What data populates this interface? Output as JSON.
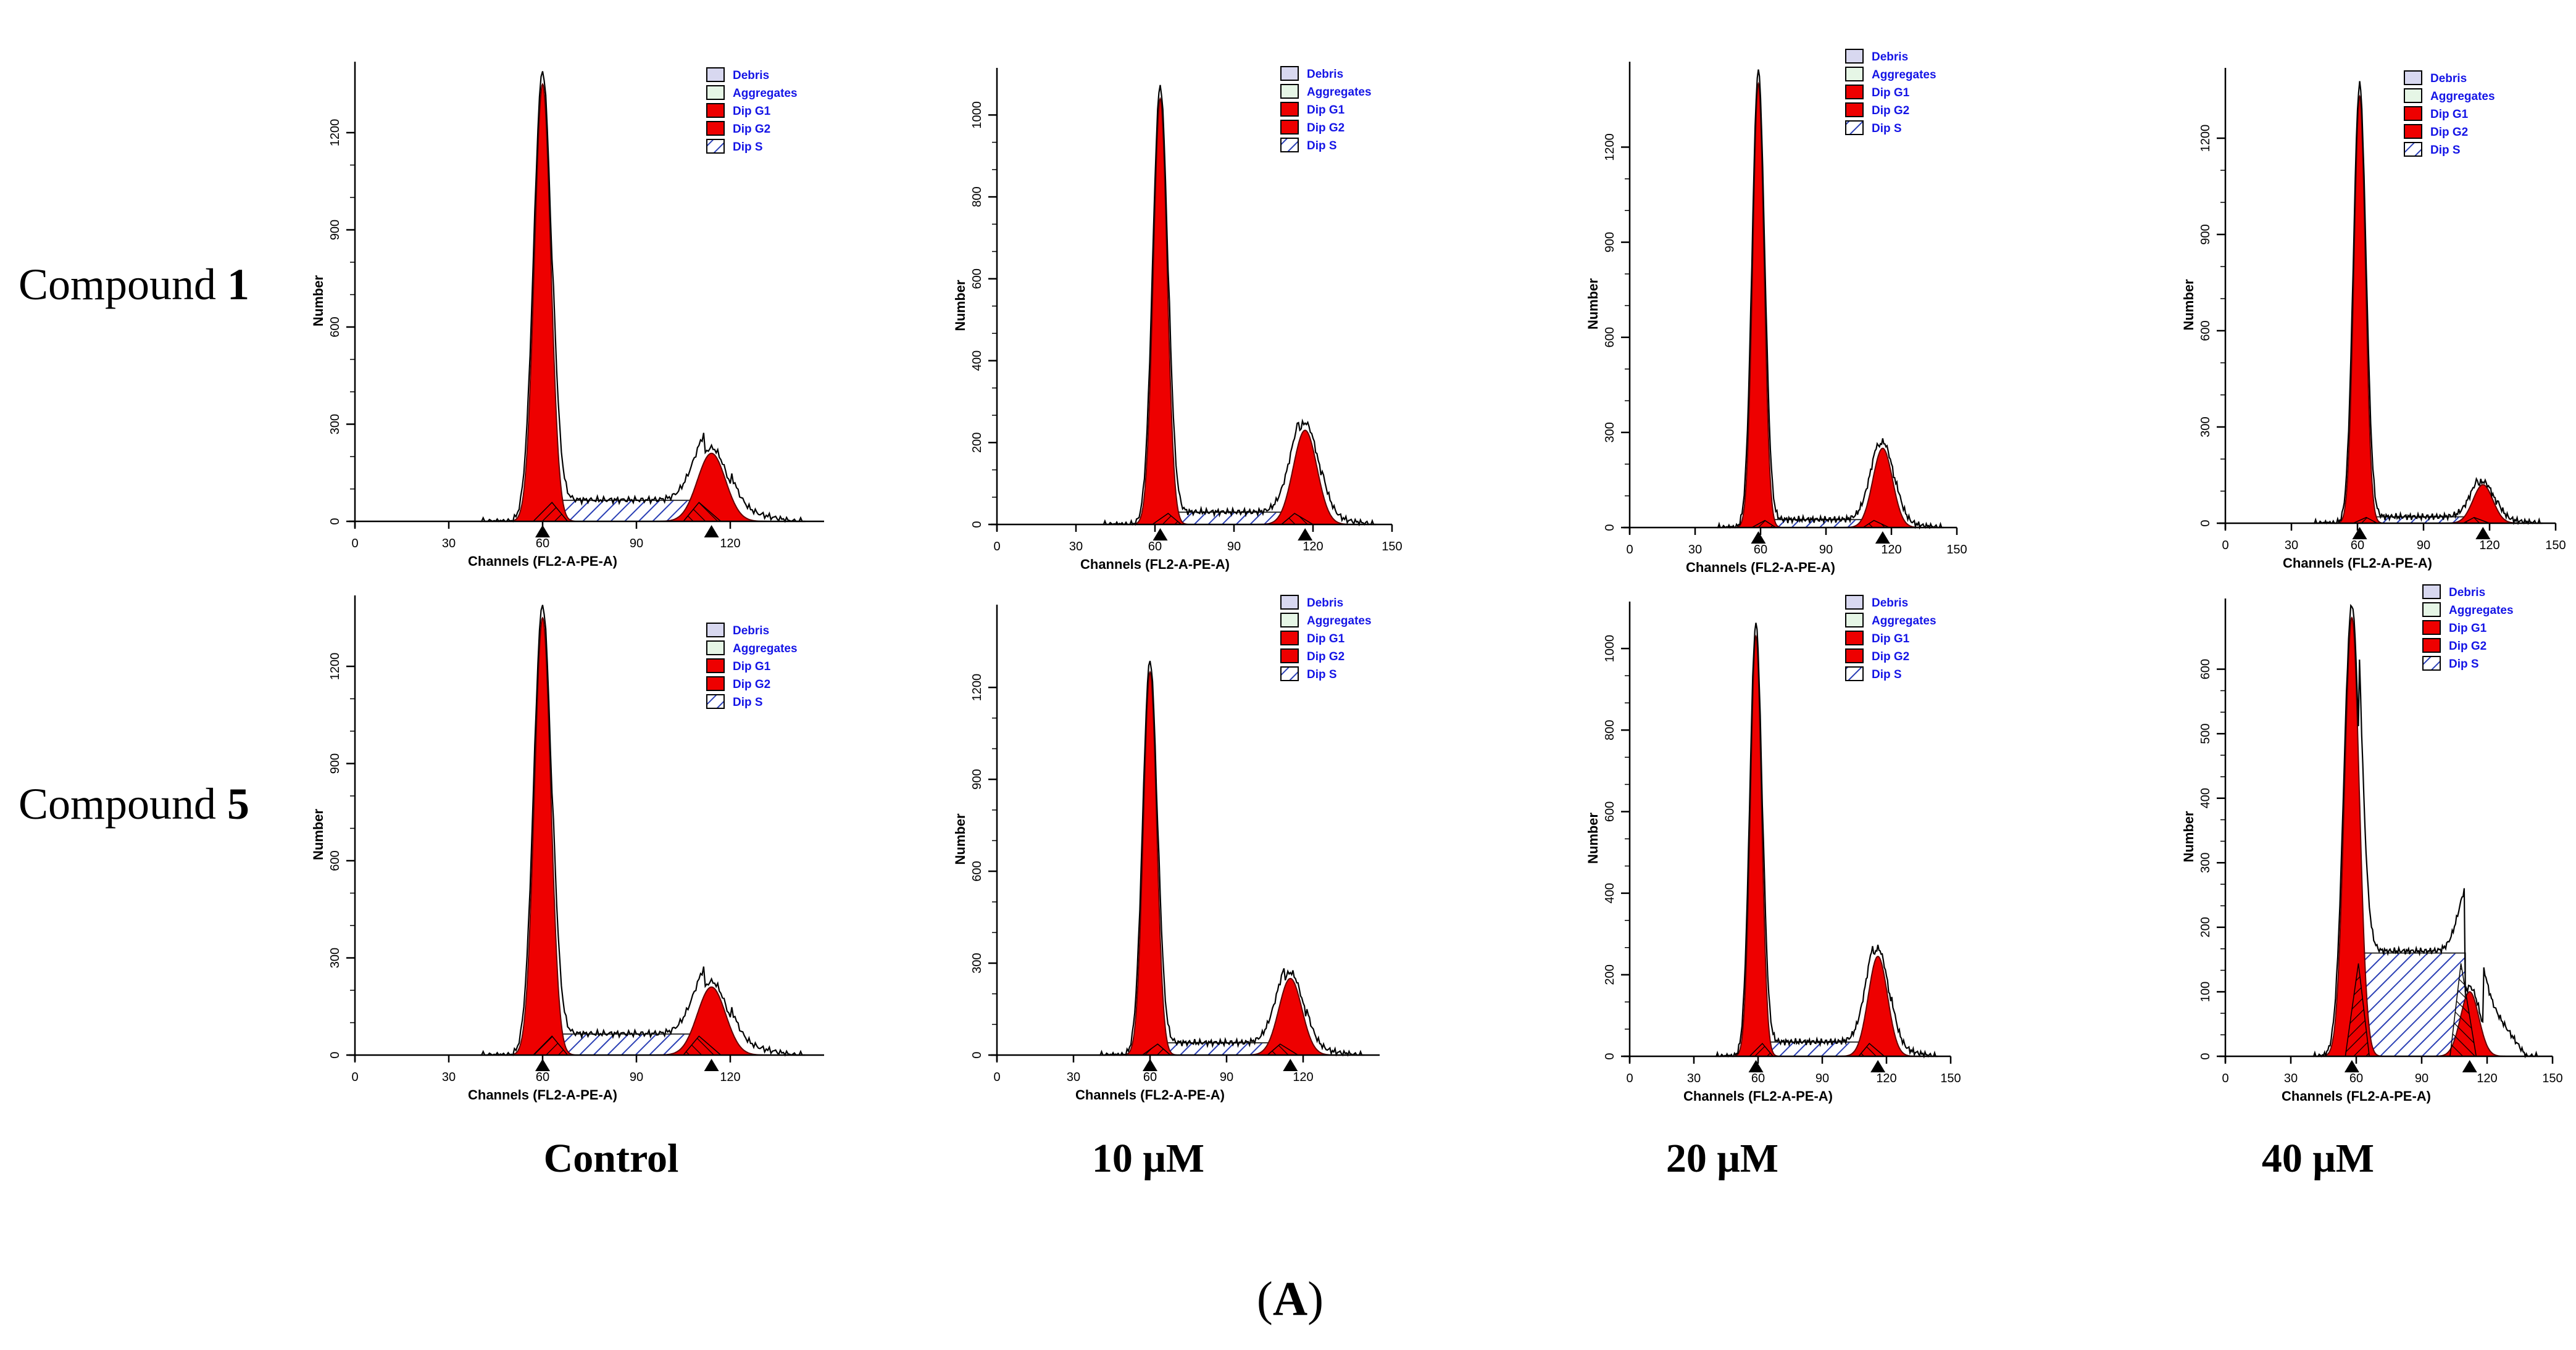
{
  "figure": {
    "panel_label_open": "(",
    "panel_label_letter": "A",
    "panel_label_close": ")"
  },
  "rows": [
    {
      "label": "Compound ",
      "label_bold": "1"
    },
    {
      "label": "Compound ",
      "label_bold": "5"
    }
  ],
  "columns": [
    "Control",
    "10 μM",
    "20 μM",
    "40 μM"
  ],
  "legend": {
    "items": [
      "Debris",
      "Aggregates",
      "Dip G1",
      "Dip G2",
      "Dip S"
    ]
  },
  "colors": {
    "g1": "#ee0000",
    "g2": "#ee0000",
    "s_hatch": "#2a3fb5",
    "debris": "#d8d8f0",
    "aggregates": "#e6f6e6",
    "legend_text": "#1414e6",
    "axis": "#000000"
  },
  "chart_data": [
    {
      "type": "histogram",
      "row": "Compound 1",
      "condition": "Control",
      "xlabel": "Channels (FL2-A-PE-A)",
      "ylabel": "Number",
      "xlim": [
        0,
        150
      ],
      "xticks": [
        0,
        30,
        60,
        90,
        120
      ],
      "xtick_labels": [
        "0",
        "30",
        "60",
        "90",
        "120"
      ],
      "ylim": [
        0,
        1400
      ],
      "yticks": [
        0,
        300,
        600,
        900,
        1200
      ],
      "g1": {
        "pos": 60,
        "peak": 1350
      },
      "g2": {
        "pos": 114,
        "peak": 210
      },
      "s_phase_level": 65,
      "markers": [
        60,
        114
      ]
    },
    {
      "type": "histogram",
      "row": "Compound 1",
      "condition": "10 μM",
      "xlabel": "Channels (FL2-A-PE-A)",
      "ylabel": "Number",
      "xlim": [
        0,
        150
      ],
      "xticks": [
        0,
        30,
        60,
        90,
        120,
        150
      ],
      "xtick_labels": [
        "0",
        "30",
        "60",
        "90",
        "120",
        "150"
      ],
      "ylim": [
        0,
        1100
      ],
      "yticks": [
        0,
        200,
        400,
        600,
        800,
        1000
      ],
      "g1": {
        "pos": 62,
        "peak": 1040
      },
      "g2": {
        "pos": 117,
        "peak": 230
      },
      "s_phase_level": 30,
      "markers": [
        62,
        117
      ]
    },
    {
      "type": "histogram",
      "row": "Compound 1",
      "condition": "20 μM",
      "xlabel": "Channels (FL2-A-PE-A)",
      "ylabel": "Number",
      "xlim": [
        0,
        150
      ],
      "xticks": [
        0,
        30,
        60,
        90,
        120,
        150
      ],
      "xtick_labels": [
        "0",
        "30",
        "60",
        "90",
        "120",
        "150"
      ],
      "ylim": [
        0,
        1450
      ],
      "yticks": [
        0,
        300,
        600,
        900,
        1200
      ],
      "g1": {
        "pos": 59,
        "peak": 1400
      },
      "g2": {
        "pos": 116,
        "peak": 250
      },
      "s_phase_level": 25,
      "markers": [
        59,
        116
      ]
    },
    {
      "type": "histogram",
      "row": "Compound 1",
      "condition": "40 μM",
      "xlabel": "Channels (FL2-A-PE-A)",
      "ylabel": "Number",
      "xlim": [
        0,
        150
      ],
      "xticks": [
        0,
        30,
        60,
        90,
        120,
        150
      ],
      "xtick_labels": [
        "0",
        "30",
        "60",
        "90",
        "120",
        "150"
      ],
      "ylim": [
        0,
        1400
      ],
      "yticks": [
        0,
        300,
        600,
        900,
        1200
      ],
      "g1": {
        "pos": 61,
        "peak": 1330
      },
      "g2": {
        "pos": 117,
        "peak": 120
      },
      "s_phase_level": 20,
      "markers": [
        61,
        117
      ]
    },
    {
      "type": "histogram",
      "row": "Compound 5",
      "condition": "Control",
      "xlabel": "Channels (FL2-A-PE-A)",
      "ylabel": "Number",
      "xlim": [
        0,
        150
      ],
      "xticks": [
        0,
        30,
        60,
        90,
        120
      ],
      "xtick_labels": [
        "0",
        "30",
        "60",
        "90",
        "120"
      ],
      "ylim": [
        0,
        1400
      ],
      "yticks": [
        0,
        300,
        600,
        900,
        1200
      ],
      "g1": {
        "pos": 60,
        "peak": 1350
      },
      "g2": {
        "pos": 114,
        "peak": 210
      },
      "s_phase_level": 65,
      "markers": [
        60,
        114
      ]
    },
    {
      "type": "histogram",
      "row": "Compound 5",
      "condition": "10 μM",
      "xlabel": "Channels (FL2-A-PE-A)",
      "ylabel": "Number",
      "xlim": [
        0,
        150
      ],
      "xticks": [
        0,
        30,
        60,
        90,
        120
      ],
      "xtick_labels": [
        "0",
        "30",
        "60",
        "90",
        "120"
      ],
      "ylim": [
        0,
        1450
      ],
      "yticks": [
        0,
        300,
        600,
        900,
        1200
      ],
      "g1": {
        "pos": 60,
        "peak": 1250
      },
      "g2": {
        "pos": 115,
        "peak": 250
      },
      "s_phase_level": 40,
      "markers": [
        60,
        115
      ]
    },
    {
      "type": "histogram",
      "row": "Compound 5",
      "condition": "20 μM",
      "xlabel": "Channels (FL2-A-PE-A)",
      "ylabel": "Number",
      "xlim": [
        0,
        150
      ],
      "xticks": [
        0,
        30,
        60,
        90,
        120,
        150
      ],
      "xtick_labels": [
        "0",
        "30",
        "60",
        "90",
        "120",
        "150"
      ],
      "ylim": [
        0,
        1100
      ],
      "yticks": [
        0,
        200,
        400,
        600,
        800,
        1000
      ],
      "g1": {
        "pos": 59,
        "peak": 1030
      },
      "g2": {
        "pos": 116,
        "peak": 245
      },
      "s_phase_level": 35,
      "markers": [
        59,
        116
      ]
    },
    {
      "type": "histogram",
      "row": "Compound 5",
      "condition": "40 μM",
      "xlabel": "Channels (FL2-A-PE-A)",
      "ylabel": "Number",
      "xlim": [
        0,
        150
      ],
      "xticks": [
        0,
        30,
        60,
        90,
        120,
        150
      ],
      "xtick_labels": [
        "0",
        "30",
        "60",
        "90",
        "120",
        "150"
      ],
      "ylim": [
        0,
        700
      ],
      "yticks": [
        0,
        100,
        200,
        300,
        400,
        500,
        600
      ],
      "g1": {
        "pos": 58,
        "peak": 680
      },
      "g2": {
        "pos": 112,
        "peak": 100
      },
      "s_phase_level": 160,
      "markers": [
        58,
        112
      ]
    }
  ]
}
